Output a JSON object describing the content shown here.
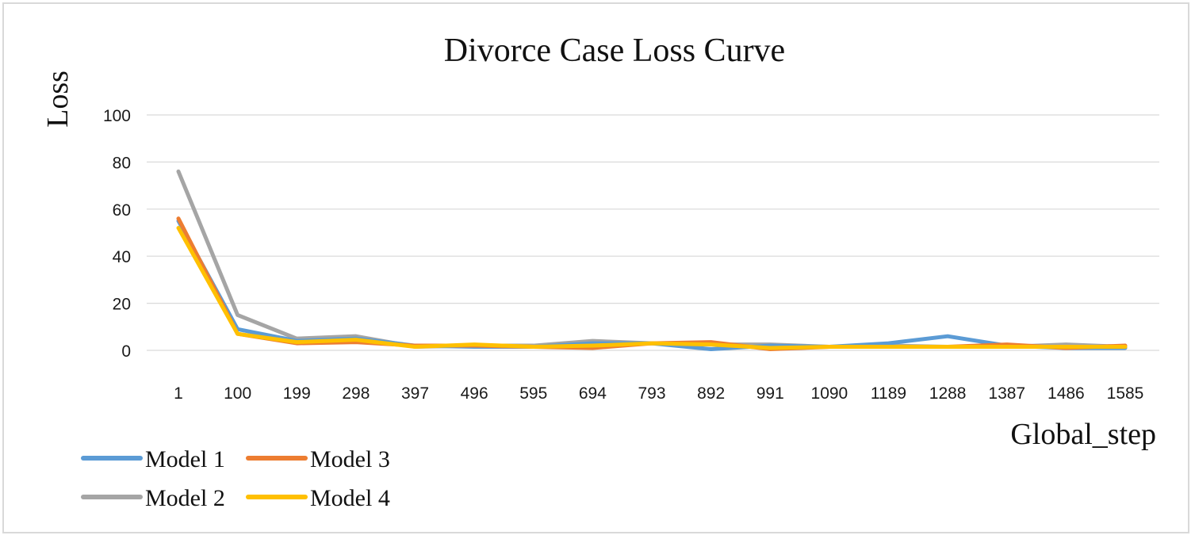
{
  "chart_data": {
    "type": "line",
    "title": "Divorce Case Loss Curve",
    "xlabel": "Global_step",
    "ylabel": "Loss",
    "ylim": [
      0,
      100
    ],
    "yticks": [
      0,
      20,
      40,
      60,
      80,
      100
    ],
    "grid": true,
    "legend_position": "bottom-left",
    "categories": [
      "1",
      "100",
      "199",
      "298",
      "397",
      "496",
      "595",
      "694",
      "793",
      "892",
      "991",
      "1090",
      "1189",
      "1288",
      "1387",
      "1486",
      "1585"
    ],
    "series": [
      {
        "name": "Model 1",
        "color": "#5B9BD5",
        "values": [
          55,
          9,
          4,
          5,
          2,
          1.5,
          1.5,
          3,
          3,
          0.5,
          2,
          1.5,
          3,
          6,
          2,
          1,
          1
        ]
      },
      {
        "name": "Model 2",
        "color": "#A5A5A5",
        "values": [
          76,
          15,
          5,
          6,
          1.5,
          2,
          2,
          4,
          3,
          2.5,
          2.5,
          1.5,
          2,
          1.5,
          1.5,
          2.5,
          1.5
        ]
      },
      {
        "name": "Model 3",
        "color": "#ED7D31",
        "values": [
          56,
          7,
          3,
          3.5,
          2,
          2,
          1.5,
          1,
          3,
          3.5,
          0.5,
          1.5,
          1.5,
          1.5,
          2.5,
          1,
          2
        ]
      },
      {
        "name": "Model 4",
        "color": "#FFC000",
        "values": [
          52,
          7,
          3.5,
          4.5,
          1.5,
          2.5,
          1.5,
          2,
          3,
          2.5,
          1,
          1.5,
          1.5,
          1.5,
          1.5,
          1.5,
          1.5
        ]
      }
    ]
  }
}
